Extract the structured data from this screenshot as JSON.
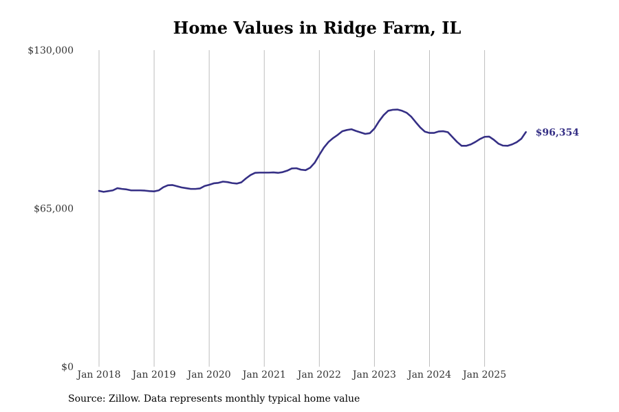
{
  "chart_data": {
    "type": "line",
    "title": "Home Values in Ridge Farm, IL",
    "source": "Source: Zillow. Data represents monthly typical home value",
    "xlabel": "",
    "ylabel": "",
    "ylim": [
      0,
      130000
    ],
    "yticks": [
      {
        "value": 0,
        "label": "$0"
      },
      {
        "value": 65000,
        "label": "$65,000"
      },
      {
        "value": 130000,
        "label": "$130,000"
      }
    ],
    "xlim": [
      2018.0,
      2025.9167
    ],
    "xticks": [
      {
        "value": 2018,
        "label": "Jan 2018"
      },
      {
        "value": 2019,
        "label": "Jan 2019"
      },
      {
        "value": 2020,
        "label": "Jan 2020"
      },
      {
        "value": 2021,
        "label": "Jan 2021"
      },
      {
        "value": 2022,
        "label": "Jan 2022"
      },
      {
        "value": 2023,
        "label": "Jan 2023"
      },
      {
        "value": 2024,
        "label": "Jan 2024"
      },
      {
        "value": 2025,
        "label": "Jan 2025"
      }
    ],
    "grid": "vertical",
    "line_color": "#352f85",
    "end_label": "$96,354",
    "series": [
      {
        "name": "Typical home value",
        "start": 2018.0,
        "step_months": 1,
        "values": [
          72200,
          71800,
          72100,
          72400,
          73300,
          73000,
          72800,
          72400,
          72400,
          72400,
          72300,
          72100,
          72000,
          72400,
          73700,
          74500,
          74600,
          74100,
          73600,
          73300,
          73000,
          73000,
          73200,
          74200,
          74700,
          75300,
          75500,
          76000,
          75800,
          75400,
          75200,
          75700,
          77300,
          78700,
          79600,
          79700,
          79700,
          79700,
          79800,
          79600,
          79900,
          80500,
          81400,
          81500,
          80900,
          80700,
          81700,
          83800,
          87000,
          90000,
          92300,
          93900,
          95200,
          96700,
          97200,
          97500,
          96800,
          96200,
          95600,
          95900,
          97800,
          100800,
          103300,
          105100,
          105500,
          105600,
          105100,
          104300,
          102700,
          100400,
          98200,
          96500,
          96000,
          96000,
          96600,
          96700,
          96300,
          94300,
          92300,
          90700,
          90700,
          91300,
          92300,
          93500,
          94400,
          94500,
          93200,
          91600,
          90800,
          90700,
          91300,
          92200,
          93600,
          96354
        ]
      }
    ]
  }
}
